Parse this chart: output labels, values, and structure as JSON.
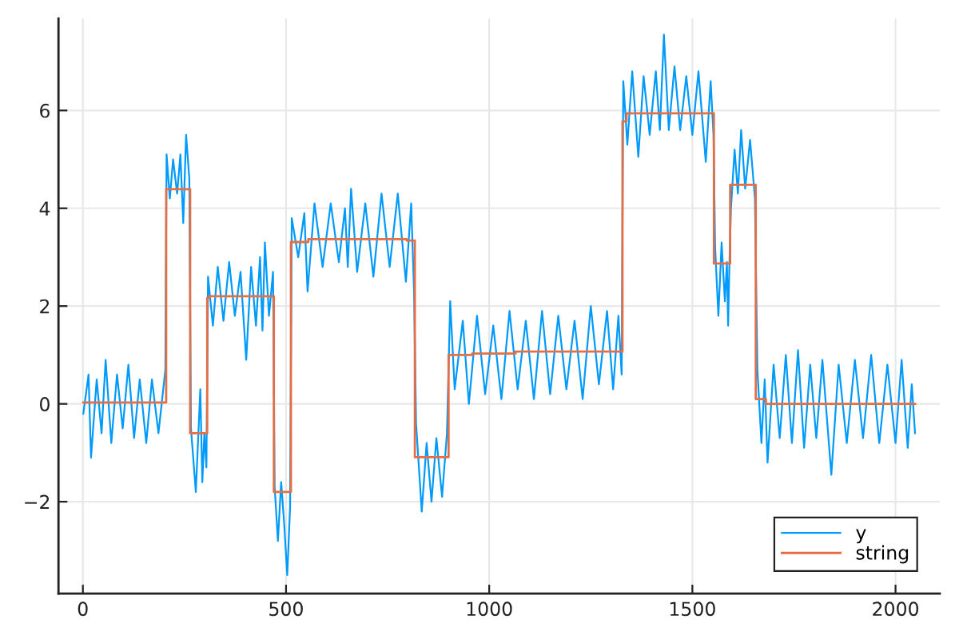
{
  "chart_data": {
    "type": "line",
    "xlim": [
      -60,
      2109
    ],
    "xticks": [
      0,
      500,
      1000,
      1500,
      2000
    ],
    "ylim": [
      -3.88,
      7.88
    ],
    "yticks": [
      {
        "value": -2,
        "label": "−2"
      },
      0,
      2,
      4,
      6
    ],
    "grid": true,
    "legend": "bottom right",
    "series": [
      {
        "name": "y",
        "color": "#009afa",
        "x": [
          1,
          14,
          20,
          34,
          46,
          56,
          70,
          84,
          98,
          112,
          126,
          140,
          156,
          170,
          186,
          203,
          206,
          214,
          222,
          232,
          240,
          247,
          254,
          262,
          266,
          278,
          289,
          294,
          299,
          304,
          308,
          320,
          332,
          346,
          360,
          374,
          388,
          402,
          414,
          426,
          436,
          442,
          448,
          458,
          468,
          472,
          480,
          488,
          495,
          503,
          510,
          514,
          530,
          545,
          553,
          570,
          590,
          610,
          630,
          645,
          652,
          660,
          675,
          695,
          715,
          735,
          755,
          775,
          795,
          808,
          815,
          820,
          834,
          846,
          858,
          870,
          884,
          896,
          904,
          915,
          935,
          950,
          970,
          990,
          1010,
          1030,
          1050,
          1070,
          1090,
          1110,
          1130,
          1150,
          1170,
          1190,
          1210,
          1230,
          1250,
          1270,
          1290,
          1305,
          1318,
          1326,
          1330,
          1340,
          1352,
          1367,
          1380,
          1395,
          1410,
          1420,
          1430,
          1442,
          1456,
          1470,
          1485,
          1500,
          1515,
          1533,
          1545,
          1552,
          1556,
          1564,
          1572,
          1580,
          1585,
          1588,
          1591,
          1595,
          1604,
          1612,
          1620,
          1630,
          1642,
          1654,
          1660,
          1670,
          1678,
          1685,
          1700,
          1715,
          1730,
          1745,
          1760,
          1775,
          1790,
          1805,
          1820,
          1842,
          1860,
          1880,
          1900,
          1920,
          1940,
          1960,
          1980,
          2000,
          2015,
          2030,
          2040,
          2048
        ],
        "values": [
          -0.2,
          0.6,
          -1.1,
          0.5,
          -0.6,
          0.9,
          -0.8,
          0.6,
          -0.5,
          0.8,
          -0.7,
          0.5,
          -0.8,
          0.5,
          -0.6,
          0.7,
          5.1,
          4.2,
          5.0,
          4.3,
          5.1,
          3.7,
          5.5,
          4.6,
          -0.5,
          -1.8,
          0.3,
          -1.6,
          -0.6,
          -1.3,
          2.6,
          1.6,
          2.8,
          1.7,
          2.9,
          1.8,
          2.7,
          0.9,
          2.8,
          1.6,
          3.0,
          1.5,
          3.3,
          1.8,
          2.7,
          -1.7,
          -2.8,
          -1.6,
          -2.4,
          -3.5,
          -2.1,
          3.8,
          3.0,
          3.9,
          2.3,
          4.1,
          2.8,
          4.1,
          2.9,
          4.0,
          2.8,
          4.4,
          2.7,
          4.1,
          2.6,
          4.3,
          2.8,
          4.3,
          2.5,
          4.1,
          2.3,
          -0.4,
          -2.2,
          -0.8,
          -2.0,
          -0.7,
          -1.9,
          -0.6,
          2.1,
          0.3,
          1.7,
          0.0,
          1.8,
          0.2,
          1.6,
          0.1,
          1.9,
          0.3,
          1.7,
          0.1,
          1.9,
          0.2,
          1.8,
          0.3,
          1.7,
          0.1,
          2.0,
          0.4,
          1.9,
          0.3,
          1.8,
          0.6,
          6.6,
          5.3,
          6.8,
          5.05,
          6.7,
          5.5,
          6.8,
          5.6,
          7.55,
          5.6,
          6.9,
          5.6,
          6.7,
          5.5,
          6.8,
          4.95,
          6.6,
          5.5,
          3.2,
          1.8,
          3.3,
          2.1,
          2.9,
          1.6,
          2.8,
          4.0,
          5.2,
          4.3,
          5.6,
          4.4,
          5.4,
          4.2,
          0.7,
          -0.8,
          0.5,
          -1.2,
          0.8,
          -0.7,
          1.0,
          -0.8,
          1.1,
          -0.9,
          0.8,
          -0.7,
          0.9,
          -1.45,
          0.8,
          -0.8,
          0.9,
          -0.7,
          1.0,
          -0.8,
          0.8,
          -0.8,
          0.9,
          -0.9,
          0.4,
          -0.6
        ]
      },
      {
        "name": "string",
        "type": "step",
        "color": "#e36f47",
        "x": [
          1,
          205,
          264,
          306,
          312,
          470,
          512,
          555,
          797,
          817,
          900,
          958,
          1065,
          1328,
          1338,
          1553,
          1593,
          1656,
          1681,
          2048
        ],
        "values": [
          0.03,
          4.39,
          -0.6,
          2.17,
          2.2,
          -1.8,
          3.31,
          3.37,
          3.34,
          -1.09,
          1.0,
          1.03,
          1.07,
          5.78,
          5.94,
          2.87,
          4.48,
          0.1,
          0.0,
          0.0
        ]
      }
    ]
  }
}
